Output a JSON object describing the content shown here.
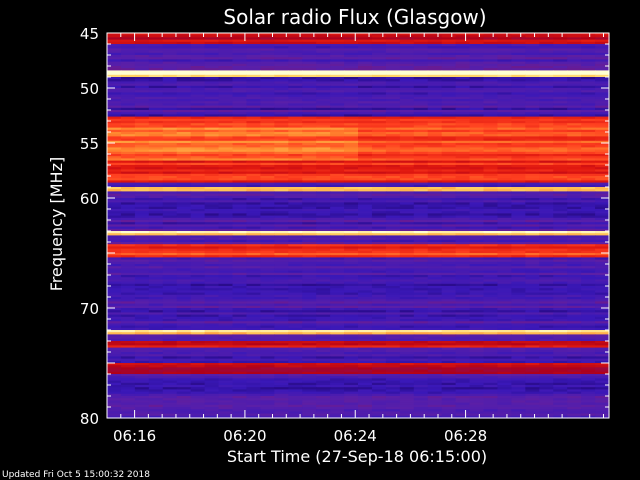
{
  "chart_data": {
    "type": "heatmap",
    "title": "Solar radio Flux (Glasgow)",
    "xlabel": "Start Time (27-Sep-18 06:15:00)",
    "ylabel": "Frequency [MHz]",
    "x_range_minutes_after_0615": [
      0,
      18.2
    ],
    "ylim": [
      45,
      80
    ],
    "y_inverted": true,
    "x_ticks": [
      {
        "value": "06:16",
        "label": "06:16"
      },
      {
        "value": "06:20",
        "label": "06:20"
      },
      {
        "value": "06:24",
        "label": "06:24"
      },
      {
        "value": "06:28",
        "label": "06:28"
      }
    ],
    "y_ticks": [
      45,
      50,
      55,
      60,
      65,
      70,
      75,
      80
    ],
    "y_tick_labels": [
      "45",
      "50",
      "55",
      "60",
      "",
      "70",
      "",
      "80"
    ],
    "colormap": [
      "#000000",
      "#1a0060",
      "#3a18b8",
      "#5a1fa8",
      "#8a1060",
      "#b00018",
      "#e01810",
      "#ff4020",
      "#ff8a30",
      "#ffd060",
      "#ffffd0"
    ],
    "bands": [
      {
        "freq_start": 45.0,
        "freq_end": 46.0,
        "level": 0.55
      },
      {
        "freq_start": 48.4,
        "freq_end": 49.0,
        "level": 0.98
      },
      {
        "freq_start": 52.6,
        "freq_end": 53.6,
        "level": 0.66
      },
      {
        "freq_start": 53.6,
        "freq_end": 56.6,
        "level": 0.75
      },
      {
        "freq_start": 56.6,
        "freq_end": 58.6,
        "level": 0.64
      },
      {
        "freq_start": 59.0,
        "freq_end": 59.5,
        "level": 0.82
      },
      {
        "freq_start": 63.0,
        "freq_end": 63.5,
        "level": 0.92
      },
      {
        "freq_start": 64.2,
        "freq_end": 64.9,
        "level": 0.62
      },
      {
        "freq_start": 65.0,
        "freq_end": 65.4,
        "level": 0.68
      },
      {
        "freq_start": 72.0,
        "freq_end": 72.4,
        "level": 0.92
      },
      {
        "freq_start": 73.0,
        "freq_end": 73.6,
        "level": 0.58
      },
      {
        "freq_start": 75.0,
        "freq_end": 76.0,
        "level": 0.5
      }
    ],
    "annotations_text": "Updated Fri Oct  5 15:00:32 2018"
  }
}
